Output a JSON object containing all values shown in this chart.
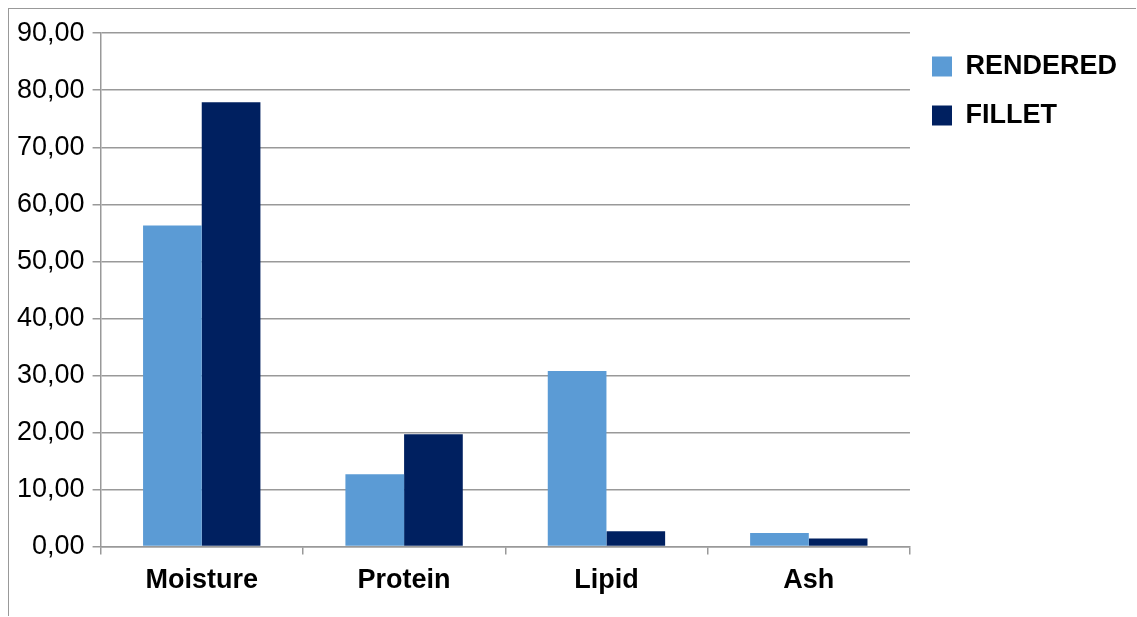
{
  "chart_data": {
    "type": "bar",
    "categories": [
      "Moisture",
      "Protein",
      "Lipid",
      "Ash"
    ],
    "series": [
      {
        "name": "RENDERED",
        "color": "#5b9bd5",
        "values": [
          56.3,
          12.7,
          30.8,
          2.4
        ]
      },
      {
        "name": "FILLET",
        "color": "#002060",
        "values": [
          77.9,
          19.7,
          2.7,
          1.4
        ]
      }
    ],
    "ylim": [
      0,
      90
    ],
    "yticks": [
      {
        "value": 0,
        "label": "0,00"
      },
      {
        "value": 10,
        "label": "10,00"
      },
      {
        "value": 20,
        "label": "20,00"
      },
      {
        "value": 30,
        "label": "30,00"
      },
      {
        "value": 40,
        "label": "40,00"
      },
      {
        "value": 50,
        "label": "50,00"
      },
      {
        "value": 60,
        "label": "60,00"
      },
      {
        "value": 70,
        "label": "70,00"
      },
      {
        "value": 80,
        "label": "80,00"
      },
      {
        "value": 90,
        "label": "90,00"
      }
    ],
    "grid": "y",
    "legend": "top right"
  }
}
